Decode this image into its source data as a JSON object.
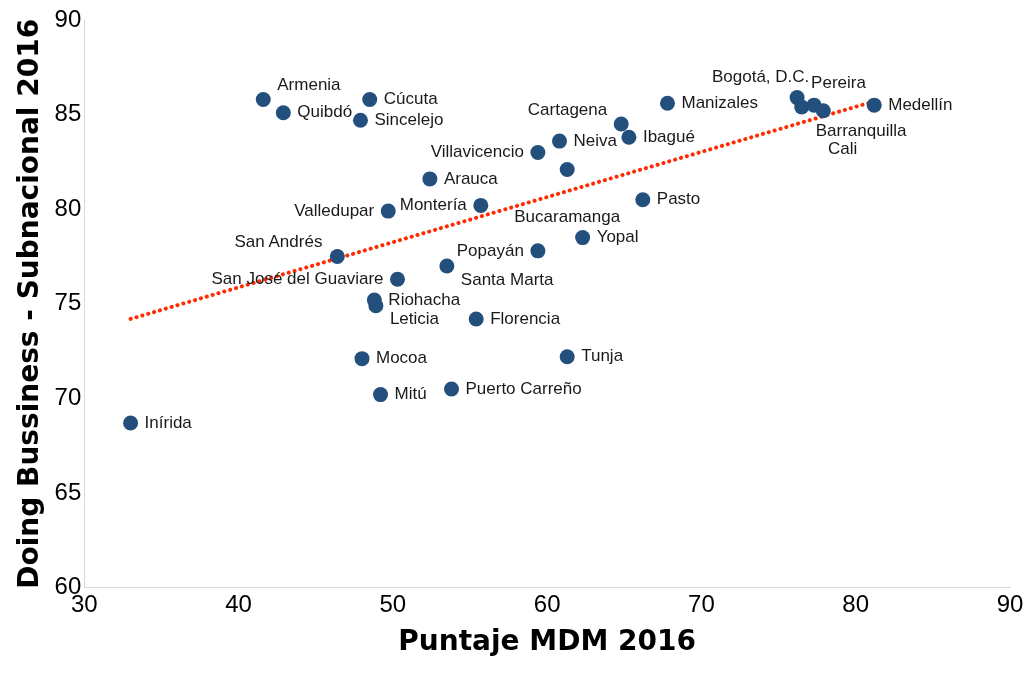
{
  "chart_data": {
    "type": "scatter",
    "xlabel": "Puntaje MDM 2016",
    "ylabel": "Doing Bussiness - Subnacional 2016",
    "xlim": [
      30,
      90
    ],
    "xticks": [
      30,
      40,
      50,
      60,
      70,
      80,
      90
    ],
    "ylim": [
      60,
      90
    ],
    "yticks": [
      60,
      65,
      70,
      75,
      80,
      85,
      90
    ],
    "grid": false,
    "legend": false,
    "marker": "circle",
    "series": [
      {
        "type": "scatter",
        "color": "#234f7d",
        "x": [
          41.6,
          42.9,
          48.5,
          47.9,
          52.4,
          49.7,
          55.7,
          46.4,
          53.5,
          50.3,
          48.8,
          48.9,
          48.0,
          49.2,
          53.8,
          55.4,
          61.3,
          59.4,
          62.3,
          66.2,
          61.3,
          59.4,
          60.8,
          64.8,
          65.3,
          67.8,
          76.2,
          76.5,
          77.3,
          77.9,
          81.2,
          33.0
        ],
        "values": [
          85.8,
          85.1,
          85.8,
          84.7,
          81.6,
          79.9,
          80.2,
          77.5,
          77.0,
          76.3,
          75.2,
          74.9,
          72.1,
          70.2,
          70.5,
          74.2,
          72.2,
          77.8,
          78.5,
          80.5,
          82.1,
          83.0,
          83.6,
          84.5,
          83.8,
          85.6,
          85.9,
          85.4,
          85.5,
          85.2,
          85.5,
          68.7
        ]
      },
      {
        "type": "line",
        "color": "#ff2a00",
        "line_style": "dotted",
        "marker": "none",
        "x": [
          33.0,
          81.2
        ],
        "values": [
          74.2,
          85.7
        ]
      }
    ],
    "annotations": [
      {
        "text": "Armenia",
        "x": 41.6,
        "y": 85.8
      },
      {
        "text": "Quibdó",
        "x": 42.9,
        "y": 85.1
      },
      {
        "text": "Cúcuta",
        "x": 48.5,
        "y": 85.8
      },
      {
        "text": "Sincelejo",
        "x": 47.9,
        "y": 84.7
      },
      {
        "text": "Arauca",
        "x": 52.4,
        "y": 81.6
      },
      {
        "text": "Valledupar",
        "x": 49.7,
        "y": 79.9
      },
      {
        "text": "Montería",
        "x": 55.7,
        "y": 80.2
      },
      {
        "text": "San Andrés",
        "x": 46.4,
        "y": 77.5
      },
      {
        "text": "Santa Marta",
        "x": 53.5,
        "y": 77.0
      },
      {
        "text": "San José del Guaviare",
        "x": 50.3,
        "y": 76.3
      },
      {
        "text": "Riohacha",
        "x": 48.8,
        "y": 75.2
      },
      {
        "text": "Leticia",
        "x": 48.9,
        "y": 74.9
      },
      {
        "text": "Mocoa",
        "x": 48.0,
        "y": 72.1
      },
      {
        "text": "Mitú",
        "x": 49.2,
        "y": 70.2
      },
      {
        "text": "Puerto Carreño",
        "x": 53.8,
        "y": 70.5
      },
      {
        "text": "Florencia",
        "x": 55.4,
        "y": 74.2
      },
      {
        "text": "Tunja",
        "x": 61.3,
        "y": 72.2
      },
      {
        "text": "Popayán",
        "x": 59.4,
        "y": 77.8
      },
      {
        "text": "Yopal",
        "x": 62.3,
        "y": 78.5
      },
      {
        "text": "Pasto",
        "x": 66.2,
        "y": 80.5
      },
      {
        "text": "Bucaramanga",
        "x": 61.3,
        "y": 82.1
      },
      {
        "text": "Villavicencio",
        "x": 59.4,
        "y": 83.0
      },
      {
        "text": "Neiva",
        "x": 60.8,
        "y": 83.6
      },
      {
        "text": "Cartagena",
        "x": 64.8,
        "y": 84.5
      },
      {
        "text": "Ibagué",
        "x": 65.3,
        "y": 83.8
      },
      {
        "text": "Manizales",
        "x": 67.8,
        "y": 85.6
      },
      {
        "text": "Pereira",
        "x": 76.2,
        "y": 85.9
      },
      {
        "text": "Barranquilla",
        "x": 76.5,
        "y": 85.4
      },
      {
        "text": "Cali",
        "x": 77.3,
        "y": 85.5
      },
      {
        "text": "Bogotá, D.C.",
        "x": 77.9,
        "y": 85.2
      },
      {
        "text": "Medellín",
        "x": 81.2,
        "y": 85.5
      },
      {
        "text": "Inírida",
        "x": 33.0,
        "y": 68.7
      }
    ]
  }
}
